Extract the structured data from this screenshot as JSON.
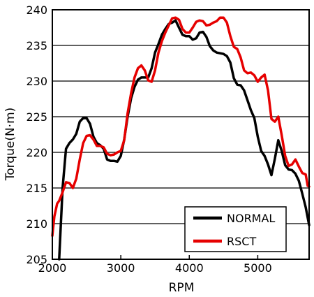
{
  "chart_data": {
    "type": "line",
    "title": "",
    "xlabel": "RPM",
    "ylabel": "Torque(N·m)",
    "xlim": [
      2000,
      5750
    ],
    "ylim": [
      205,
      240
    ],
    "x_ticks": [
      2000,
      3000,
      4000,
      5000
    ],
    "y_ticks": [
      205,
      210,
      215,
      220,
      225,
      230,
      235,
      240
    ],
    "grid": "horizontal",
    "legend_position": "bottom-right",
    "series": [
      {
        "name": "NORMAL",
        "color": "#000000",
        "points": [
          [
            2100,
            205
          ],
          [
            2150,
            215
          ],
          [
            2200,
            220.5
          ],
          [
            2250,
            221.3
          ],
          [
            2300,
            221.8
          ],
          [
            2350,
            222.6
          ],
          [
            2400,
            224.3
          ],
          [
            2450,
            224.8
          ],
          [
            2500,
            224.8
          ],
          [
            2550,
            224
          ],
          [
            2600,
            222.2
          ],
          [
            2650,
            221.3
          ],
          [
            2700,
            221
          ],
          [
            2750,
            220.5
          ],
          [
            2800,
            219
          ],
          [
            2850,
            218.8
          ],
          [
            2900,
            218.8
          ],
          [
            2950,
            218.7
          ],
          [
            3000,
            219.5
          ],
          [
            3050,
            221.8
          ],
          [
            3100,
            225
          ],
          [
            3150,
            227.6
          ],
          [
            3200,
            229.2
          ],
          [
            3250,
            230.2
          ],
          [
            3300,
            230.5
          ],
          [
            3350,
            230.5
          ],
          [
            3400,
            230.5
          ],
          [
            3450,
            231.8
          ],
          [
            3500,
            234
          ],
          [
            3550,
            235.2
          ],
          [
            3600,
            236.5
          ],
          [
            3650,
            237.3
          ],
          [
            3700,
            238
          ],
          [
            3750,
            238.2
          ],
          [
            3800,
            238.5
          ],
          [
            3850,
            237.5
          ],
          [
            3900,
            236.5
          ],
          [
            3950,
            236.3
          ],
          [
            4000,
            236.3
          ],
          [
            4050,
            235.8
          ],
          [
            4100,
            236
          ],
          [
            4150,
            236.8
          ],
          [
            4200,
            236.9
          ],
          [
            4250,
            236.2
          ],
          [
            4300,
            234.9
          ],
          [
            4350,
            234.3
          ],
          [
            4400,
            234
          ],
          [
            4450,
            233.9
          ],
          [
            4500,
            233.8
          ],
          [
            4550,
            233.5
          ],
          [
            4600,
            232.6
          ],
          [
            4650,
            230.4
          ],
          [
            4700,
            229.5
          ],
          [
            4750,
            229.4
          ],
          [
            4800,
            228.7
          ],
          [
            4850,
            227.3
          ],
          [
            4900,
            225.9
          ],
          [
            4950,
            224.8
          ],
          [
            5000,
            222.2
          ],
          [
            5050,
            220.2
          ],
          [
            5100,
            219.5
          ],
          [
            5150,
            218.3
          ],
          [
            5200,
            216.8
          ],
          [
            5250,
            219.1
          ],
          [
            5300,
            221.7
          ],
          [
            5350,
            220.2
          ],
          [
            5400,
            218.2
          ],
          [
            5450,
            217.6
          ],
          [
            5500,
            217.5
          ],
          [
            5550,
            217
          ],
          [
            5600,
            216
          ],
          [
            5650,
            214.2
          ],
          [
            5700,
            212.3
          ],
          [
            5750,
            209.8
          ]
        ]
      },
      {
        "name": "RSCT",
        "color": "#e60000",
        "points": [
          [
            2000,
            208.3
          ],
          [
            2030,
            211
          ],
          [
            2070,
            212.8
          ],
          [
            2100,
            213.2
          ],
          [
            2150,
            214.4
          ],
          [
            2200,
            215.8
          ],
          [
            2250,
            215.7
          ],
          [
            2300,
            215
          ],
          [
            2350,
            216.3
          ],
          [
            2400,
            219
          ],
          [
            2450,
            221.3
          ],
          [
            2500,
            222.3
          ],
          [
            2550,
            222.4
          ],
          [
            2600,
            221.8
          ],
          [
            2650,
            220.9
          ],
          [
            2700,
            220.9
          ],
          [
            2750,
            220.7
          ],
          [
            2800,
            219.8
          ],
          [
            2850,
            219.6
          ],
          [
            2900,
            219.7
          ],
          [
            2950,
            220
          ],
          [
            3000,
            220.2
          ],
          [
            3050,
            221.7
          ],
          [
            3100,
            225.5
          ],
          [
            3150,
            228.3
          ],
          [
            3200,
            230.5
          ],
          [
            3250,
            231.8
          ],
          [
            3300,
            232.2
          ],
          [
            3350,
            231.5
          ],
          [
            3400,
            230.1
          ],
          [
            3450,
            229.9
          ],
          [
            3500,
            231.5
          ],
          [
            3550,
            234
          ],
          [
            3600,
            235.6
          ],
          [
            3650,
            236.8
          ],
          [
            3700,
            237.8
          ],
          [
            3750,
            238.8
          ],
          [
            3800,
            238.9
          ],
          [
            3850,
            238.6
          ],
          [
            3900,
            237.3
          ],
          [
            3950,
            236.8
          ],
          [
            4000,
            236.8
          ],
          [
            4050,
            237.5
          ],
          [
            4100,
            238.3
          ],
          [
            4150,
            238.5
          ],
          [
            4200,
            238.4
          ],
          [
            4250,
            237.8
          ],
          [
            4300,
            237.9
          ],
          [
            4350,
            238.2
          ],
          [
            4400,
            238.4
          ],
          [
            4450,
            238.9
          ],
          [
            4500,
            238.9
          ],
          [
            4550,
            238.2
          ],
          [
            4600,
            236.3
          ],
          [
            4650,
            234.8
          ],
          [
            4700,
            234.5
          ],
          [
            4750,
            233.3
          ],
          [
            4800,
            231.5
          ],
          [
            4850,
            231.1
          ],
          [
            4900,
            231.2
          ],
          [
            4950,
            230.8
          ],
          [
            5000,
            229.9
          ],
          [
            5050,
            230.5
          ],
          [
            5100,
            230.9
          ],
          [
            5150,
            228.7
          ],
          [
            5200,
            224.7
          ],
          [
            5250,
            224.3
          ],
          [
            5300,
            225
          ],
          [
            5350,
            222.4
          ],
          [
            5400,
            219.5
          ],
          [
            5450,
            218.1
          ],
          [
            5500,
            218.3
          ],
          [
            5550,
            219
          ],
          [
            5600,
            218
          ],
          [
            5650,
            217.1
          ],
          [
            5700,
            216.9
          ],
          [
            5730,
            215.3
          ],
          [
            5750,
            215.2
          ]
        ]
      }
    ]
  }
}
